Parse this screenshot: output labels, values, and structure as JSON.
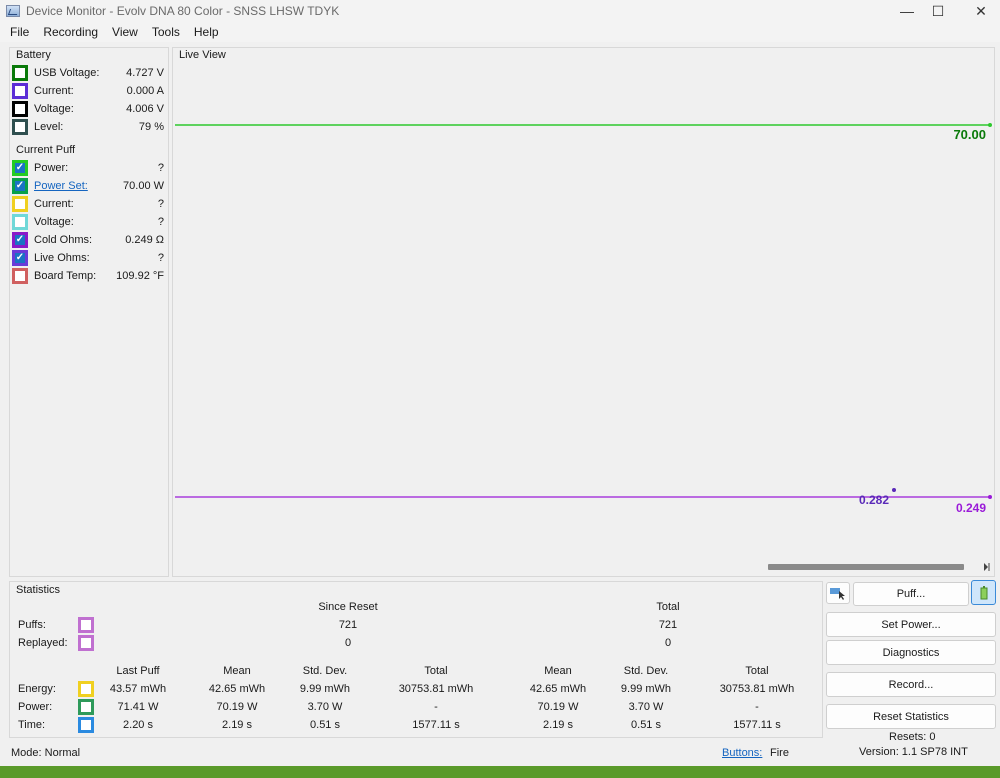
{
  "window": {
    "title": "Device Monitor - Evolv DNA 80 Color - SNSS LHSW TDYK",
    "minimize_glyph": "—",
    "maximize_glyph": "☐",
    "close_glyph": "✕"
  },
  "menu": [
    "File",
    "Recording",
    "View",
    "Tools",
    "Help"
  ],
  "battery": {
    "title": "Battery",
    "rows": [
      {
        "label": "USB Voltage:",
        "value": "4.727 V",
        "color": "#0a7a0a",
        "checked": false
      },
      {
        "label": "Current:",
        "value": "0.000 A",
        "color": "#5b2dd6",
        "checked": false
      },
      {
        "label": "Voltage:",
        "value": "4.006 V",
        "color": "#000000",
        "checked": false
      },
      {
        "label": "Level:",
        "value": "79 %",
        "color": "#2f4f4f",
        "checked": false
      }
    ]
  },
  "current_puff": {
    "title": "Current Puff",
    "rows": [
      {
        "label": "Power:",
        "value": "?",
        "color": "#22cc22",
        "checked": true
      },
      {
        "label": "Power Set:",
        "value": "70.00 W",
        "color": "#0aa04a",
        "checked": true,
        "link": true
      },
      {
        "label": "Current:",
        "value": "?",
        "color": "#f0d020",
        "checked": false
      },
      {
        "label": "Voltage:",
        "value": "?",
        "color": "#6fd8d8",
        "checked": false
      },
      {
        "label": "Cold Ohms:",
        "value": "0.249 Ω",
        "color": "#8a1ac8",
        "checked": true
      },
      {
        "label": "Live Ohms:",
        "value": "?",
        "color": "#6a3ad8",
        "checked": true
      },
      {
        "label": "Board Temp:",
        "value": "109.92 °F",
        "color": "#d06060",
        "checked": false
      }
    ]
  },
  "live_view": {
    "title": "Live View",
    "power_label": "70.00",
    "ohms_label": "0.249",
    "live_ohms_label": "0.282",
    "power_color": "#2ec82e",
    "ohms_color": "#9a1ad8",
    "live_ohms_color": "#5a2ab8"
  },
  "statistics": {
    "title": "Statistics",
    "since_reset": "Since Reset",
    "total": "Total",
    "puffs_label": "Puffs:",
    "replayed_label": "Replayed:",
    "puffs_since": "721",
    "puffs_total": "721",
    "replayed_since": "0",
    "replayed_total": "0",
    "headers": [
      "Last Puff",
      "Mean",
      "Std. Dev.",
      "Total",
      "Mean",
      "Std. Dev.",
      "Total"
    ],
    "rows": [
      {
        "label": "Energy:",
        "color": "#f0d020",
        "values": [
          "43.57 mWh",
          "42.65 mWh",
          "9.99 mWh",
          "30753.81 mWh",
          "42.65 mWh",
          "9.99 mWh",
          "30753.81 mWh"
        ]
      },
      {
        "label": "Power:",
        "color": "#2e9a5a",
        "values": [
          "71.41 W",
          "70.19 W",
          "3.70 W",
          "-",
          "70.19 W",
          "3.70 W",
          "-"
        ]
      },
      {
        "label": "Time:",
        "color": "#2a8ae0",
        "values": [
          "2.20 s",
          "2.19 s",
          "0.51 s",
          "1577.11 s",
          "2.19 s",
          "0.51 s",
          "1577.11 s"
        ]
      }
    ],
    "puff_swatch_color": "#c070d0"
  },
  "buttons": {
    "puff": "Puff...",
    "set_power": "Set Power...",
    "diagnostics": "Diagnostics",
    "record": "Record...",
    "reset_statistics": "Reset Statistics"
  },
  "status": {
    "mode": "Mode: Normal",
    "buttons_label": "Buttons:",
    "buttons_value": "Fire",
    "resets": "Resets: 0",
    "version": "Version: 1.1 SP78 INT"
  }
}
